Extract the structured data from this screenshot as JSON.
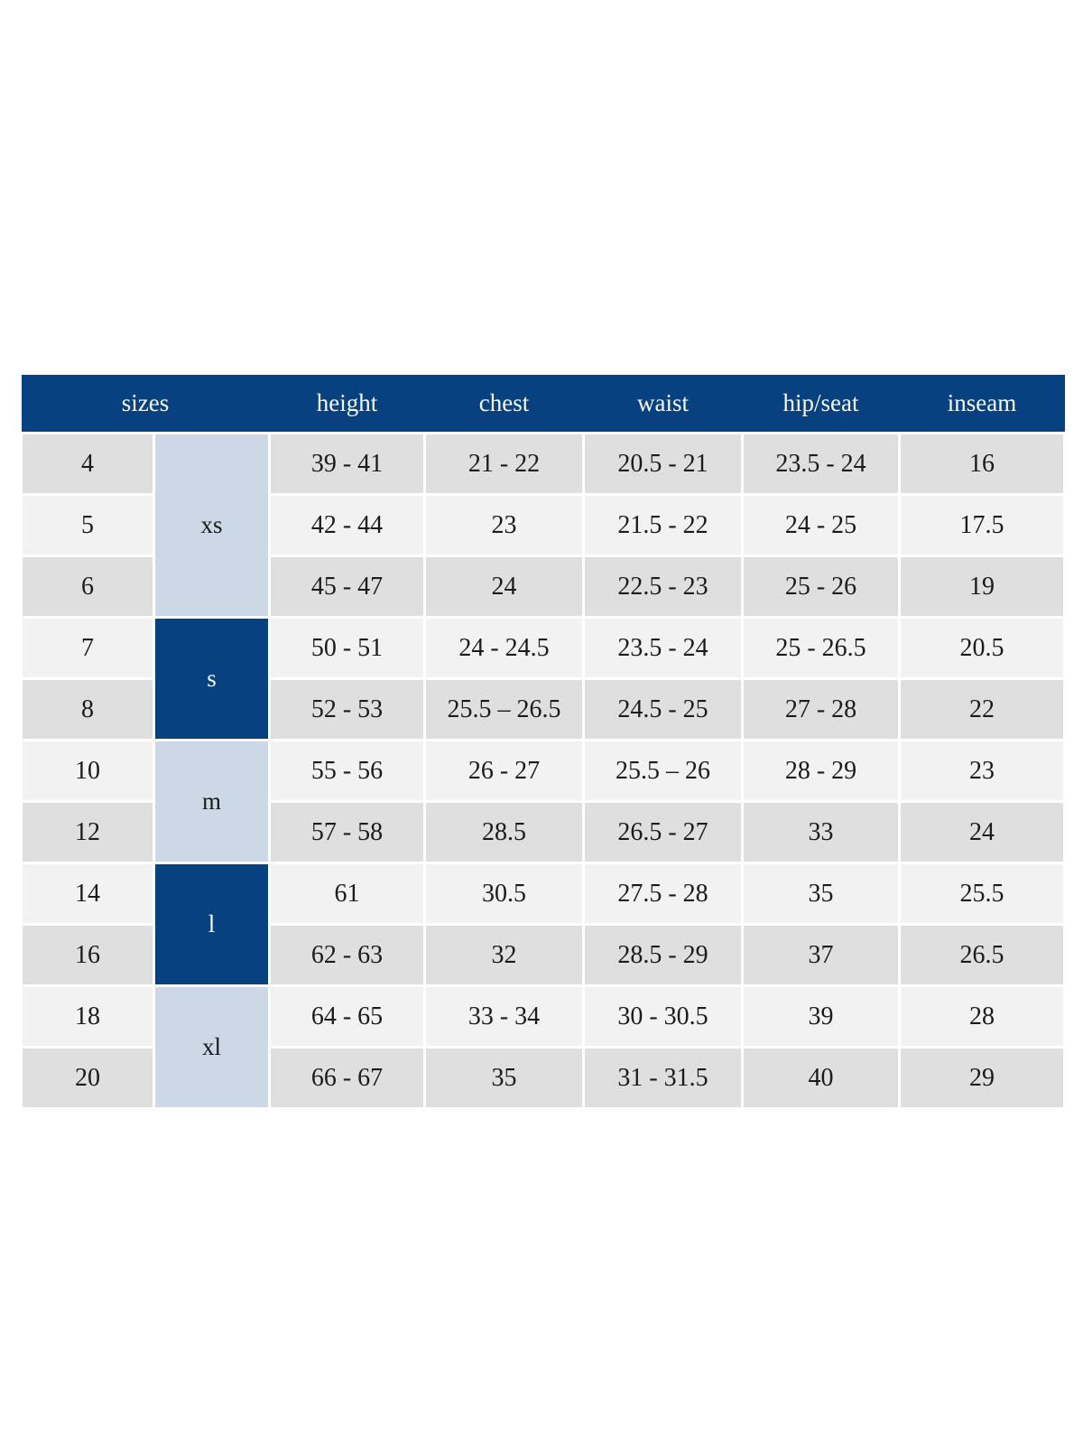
{
  "chart_data": {
    "type": "table",
    "header": [
      {
        "label": "sizes",
        "colspan": 2
      },
      {
        "label": "height",
        "colspan": 1
      },
      {
        "label": "chest",
        "colspan": 1
      },
      {
        "label": "waist",
        "colspan": 1
      },
      {
        "label": "hip/seat",
        "colspan": 1
      },
      {
        "label": "inseam",
        "colspan": 1
      }
    ],
    "size_groups": [
      {
        "label": "xs",
        "rows": 3,
        "variant": "light"
      },
      {
        "label": "s",
        "rows": 2,
        "variant": "dark"
      },
      {
        "label": "m",
        "rows": 2,
        "variant": "light"
      },
      {
        "label": "l",
        "rows": 2,
        "variant": "dark"
      },
      {
        "label": "xl",
        "rows": 2,
        "variant": "light"
      }
    ],
    "rows": [
      {
        "size": "4",
        "height": "39 - 41",
        "chest": "21 - 22",
        "waist": "20.5 - 21",
        "hip_seat": "23.5 - 24",
        "inseam": "16"
      },
      {
        "size": "5",
        "height": "42 - 44",
        "chest": "23",
        "waist": "21.5 - 22",
        "hip_seat": "24 - 25",
        "inseam": "17.5"
      },
      {
        "size": "6",
        "height": "45 - 47",
        "chest": "24",
        "waist": "22.5 - 23",
        "hip_seat": "25 - 26",
        "inseam": "19"
      },
      {
        "size": "7",
        "height": "50 - 51",
        "chest": "24 - 24.5",
        "waist": "23.5 - 24",
        "hip_seat": "25 - 26.5",
        "inseam": "20.5"
      },
      {
        "size": "8",
        "height": "52 - 53",
        "chest": "25.5 – 26.5",
        "waist": "24.5 - 25",
        "hip_seat": "27 - 28",
        "inseam": "22"
      },
      {
        "size": "10",
        "height": "55 - 56",
        "chest": "26 - 27",
        "waist": "25.5 – 26",
        "hip_seat": "28 - 29",
        "inseam": "23"
      },
      {
        "size": "12",
        "height": "57 - 58",
        "chest": "28.5",
        "waist": "26.5 - 27",
        "hip_seat": "33",
        "inseam": "24"
      },
      {
        "size": "14",
        "height": "61",
        "chest": "30.5",
        "waist": "27.5 - 28",
        "hip_seat": "35",
        "inseam": "25.5"
      },
      {
        "size": "16",
        "height": "62 - 63",
        "chest": "32",
        "waist": "28.5 - 29",
        "hip_seat": "37",
        "inseam": "26.5"
      },
      {
        "size": "18",
        "height": "64 - 65",
        "chest": "33 - 34",
        "waist": "30 - 30.5",
        "hip_seat": "39",
        "inseam": "28"
      },
      {
        "size": "20",
        "height": "66 - 67",
        "chest": "35",
        "waist": "31 - 31.5",
        "hip_seat": "40",
        "inseam": "29"
      }
    ],
    "colors": {
      "header_bg": "#07417f",
      "header_text": "#f8fafc",
      "group_dark_bg": "#07417f",
      "group_light_bg": "#ccd8e6",
      "row_a": "#dfdfdf",
      "row_b": "#f2f2f2",
      "text": "#1b1b1b"
    },
    "layout": {
      "legend": "off",
      "grid": "white 3px cell spacing",
      "columns_total": 7,
      "rows_total": 11
    }
  }
}
